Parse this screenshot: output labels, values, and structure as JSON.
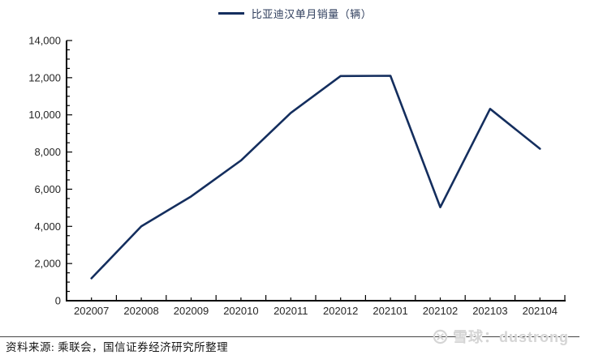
{
  "legend": {
    "label": "比亚迪汉单月销量（辆）"
  },
  "chart_data": {
    "type": "line",
    "title": "",
    "categories": [
      "202007",
      "202008",
      "202009",
      "202010",
      "202011",
      "202012",
      "202101",
      "202102",
      "202103",
      "202104"
    ],
    "series": [
      {
        "name": "比亚迪汉单月销量（辆）",
        "color": "#142e5e",
        "values": [
          1205,
          4000,
          5612,
          7545,
          10105,
          12089,
          12103,
          5028,
          10323,
          8177
        ]
      }
    ],
    "xlabel": "",
    "ylabel": "",
    "ylim": [
      0,
      14000
    ],
    "y_tick_step": 2000,
    "y_minor_step": 500,
    "y_tick_labels": [
      "0",
      "2,000",
      "4,000",
      "6,000",
      "8,000",
      "10,000",
      "12,000",
      "14,000"
    ],
    "grid": false,
    "legend_position": "top",
    "axis_color": "#000000",
    "label_color": "#262626"
  },
  "footer": {
    "source": "资料来源: 乘联会，国信证券经济研究所整理",
    "watermark": "雪球：dustrong"
  },
  "palette": {
    "line_navy": "#142e5e",
    "legend_text": "#2e3d5c",
    "divider": "#454545",
    "watermark_gray": "#d5d5d5",
    "background": "#ffffff"
  }
}
